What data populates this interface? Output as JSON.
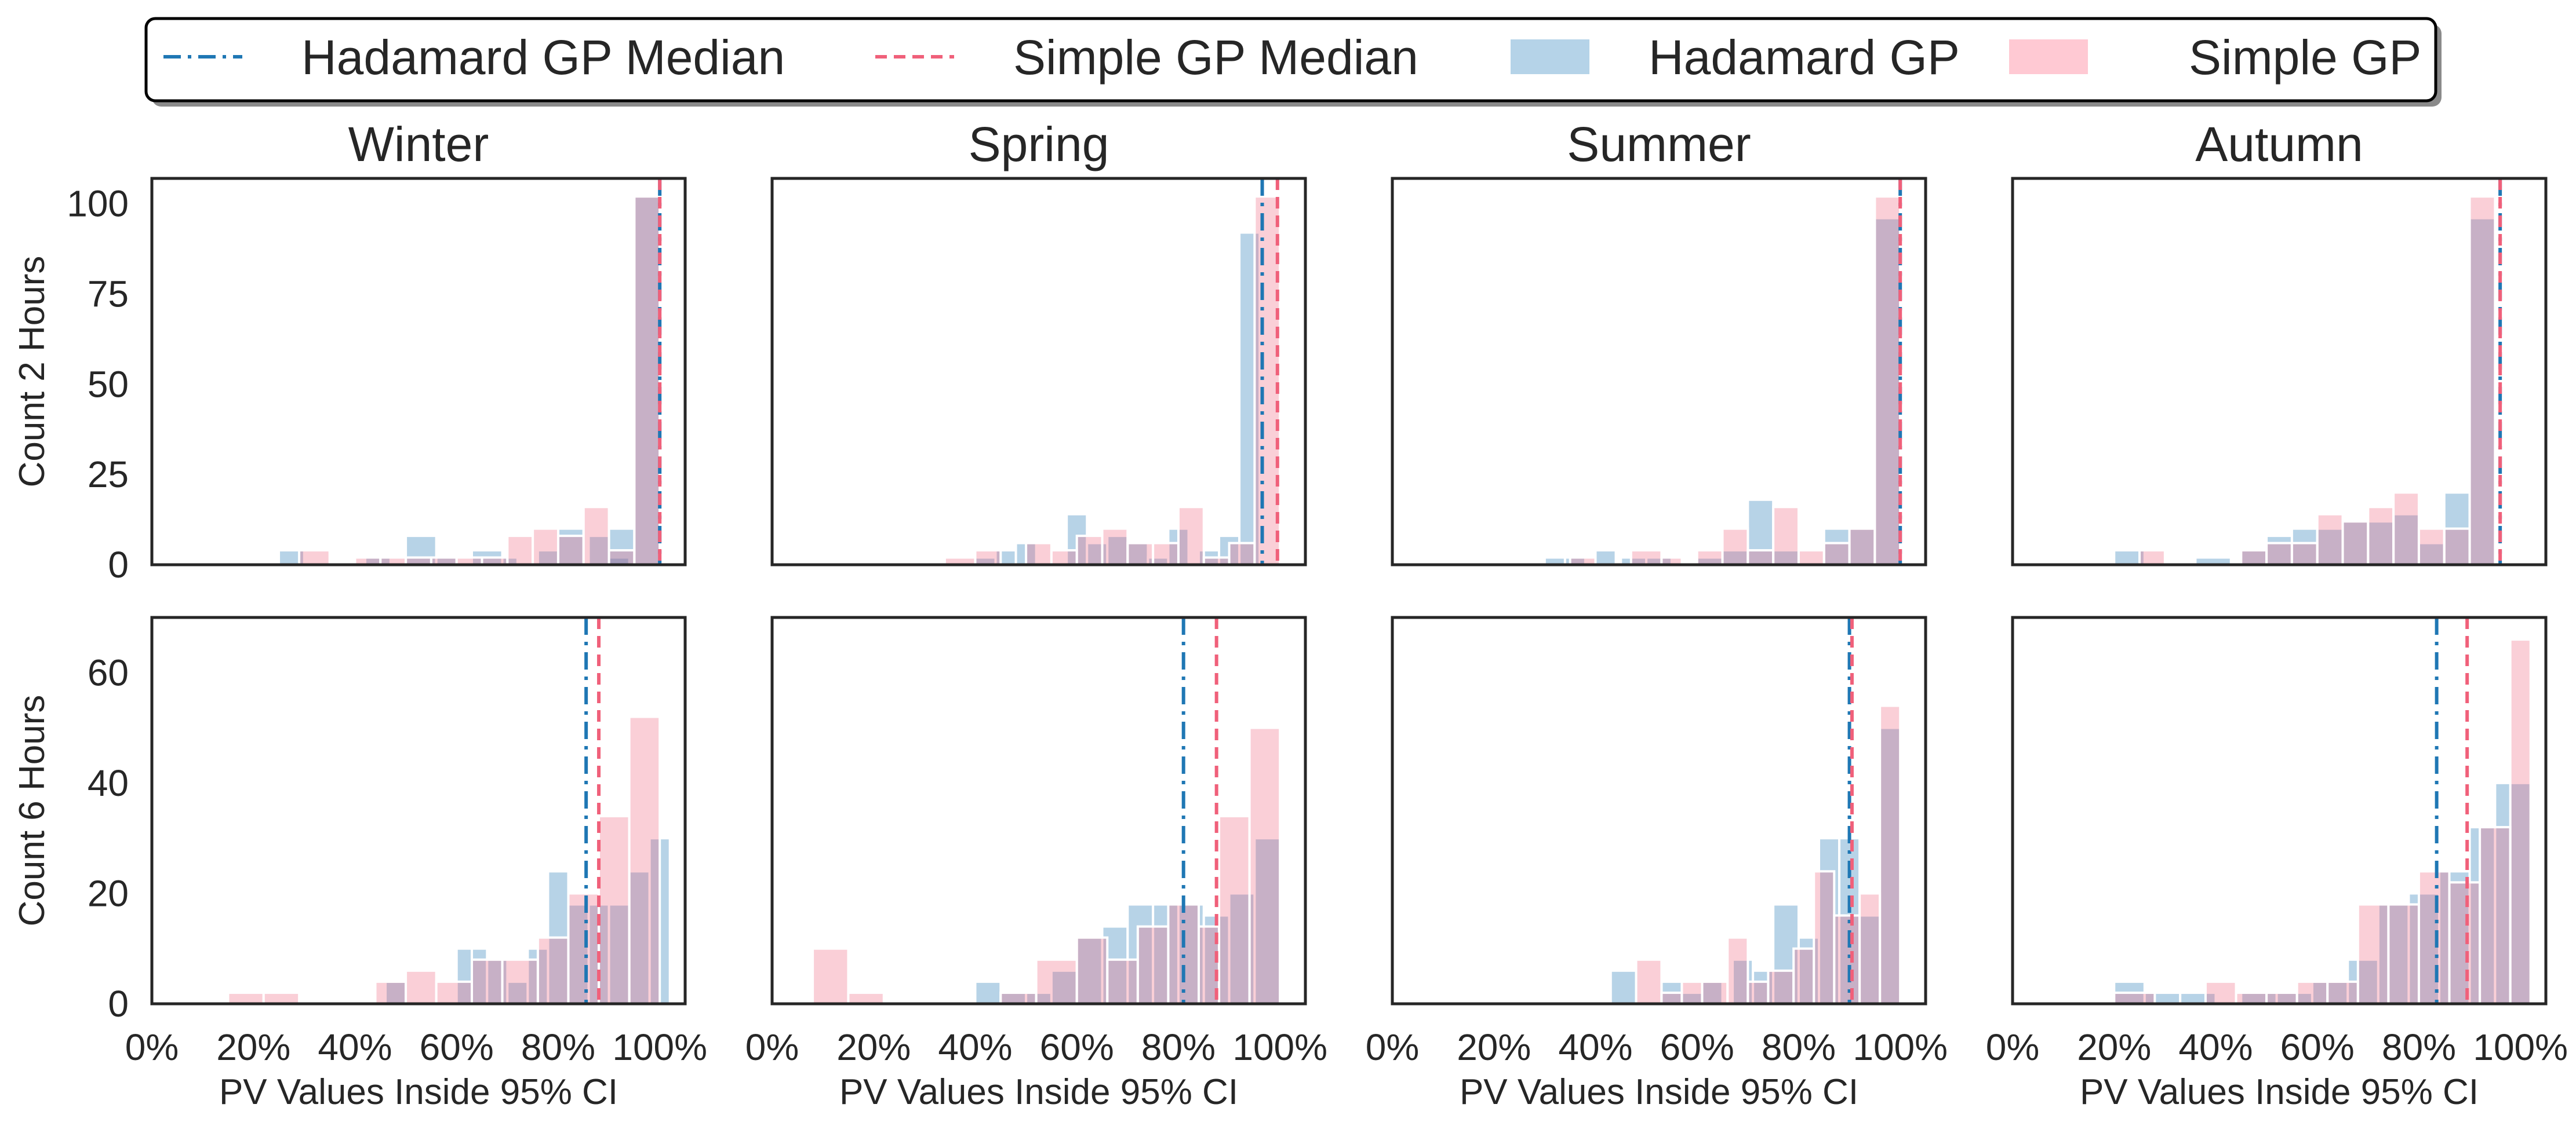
{
  "colors": {
    "hadamard": "#1f77b4",
    "simple": "#f0607a",
    "hadamard_fill": "#b5d3e8",
    "simple_fill": "#ffc9d3",
    "axes": "#262626",
    "text": "#262626"
  },
  "legend": {
    "items": [
      {
        "label": "Hadamard GP Median",
        "kind": "line",
        "series": "hadamard",
        "dash": "dashdot"
      },
      {
        "label": "Simple GP Median",
        "kind": "line",
        "series": "simple",
        "dash": "dashed"
      },
      {
        "label": "Hadamard GP",
        "kind": "patch",
        "series": "hadamard"
      },
      {
        "label": "Simple GP",
        "kind": "patch",
        "series": "simple"
      }
    ]
  },
  "chart_data": {
    "type": "histogram-grid",
    "columns": [
      "Winter",
      "Spring",
      "Summer",
      "Autumn"
    ],
    "rows": [
      {
        "ylabel": "Count 2 Hours",
        "ylim": [
          0,
          107
        ],
        "yticks": [
          0,
          25,
          50,
          75,
          100
        ]
      },
      {
        "ylabel": "Count 6 Hours",
        "ylim": [
          0,
          70
        ],
        "yticks": [
          0,
          20,
          40,
          60
        ]
      }
    ],
    "xlabel": "PV Values Inside 95% CI",
    "xlim": [
      0,
      1.05
    ],
    "xticks": [
      0,
      0.2,
      0.4,
      0.6,
      0.8,
      1.0
    ],
    "xtick_labels": [
      "0%",
      "20%",
      "40%",
      "60%",
      "80%",
      "100%"
    ],
    "panels": [
      {
        "row": 0,
        "col": 0,
        "hadamard_median": 1.0,
        "simple_median": 1.0,
        "hadamard_bins": [
          [
            0.25,
            0.3,
            4
          ],
          [
            0.42,
            0.47,
            2
          ],
          [
            0.5,
            0.56,
            8
          ],
          [
            0.56,
            0.6,
            2
          ],
          [
            0.63,
            0.69,
            4
          ],
          [
            0.69,
            0.72,
            2
          ],
          [
            0.76,
            0.8,
            4
          ],
          [
            0.8,
            0.85,
            10
          ],
          [
            0.86,
            0.9,
            8
          ],
          [
            0.9,
            0.94,
            2
          ],
          [
            0.9,
            0.95,
            10
          ],
          [
            0.95,
            1.0,
            102
          ]
        ],
        "simple_bins": [
          [
            0.29,
            0.35,
            4
          ],
          [
            0.4,
            0.45,
            2
          ],
          [
            0.45,
            0.5,
            2
          ],
          [
            0.5,
            0.55,
            2
          ],
          [
            0.55,
            0.6,
            2
          ],
          [
            0.6,
            0.65,
            2
          ],
          [
            0.65,
            0.7,
            2
          ],
          [
            0.7,
            0.75,
            8
          ],
          [
            0.75,
            0.8,
            10
          ],
          [
            0.8,
            0.85,
            8
          ],
          [
            0.85,
            0.9,
            16
          ],
          [
            0.9,
            0.95,
            4
          ],
          [
            0.95,
            1.0,
            102
          ]
        ]
      },
      {
        "row": 0,
        "col": 1,
        "hadamard_median": 0.965,
        "simple_median": 0.995,
        "hadamard_bins": [
          [
            0.4,
            0.44,
            2
          ],
          [
            0.44,
            0.48,
            4
          ],
          [
            0.48,
            0.52,
            6
          ],
          [
            0.58,
            0.62,
            14
          ],
          [
            0.62,
            0.66,
            6
          ],
          [
            0.66,
            0.7,
            8
          ],
          [
            0.7,
            0.74,
            6
          ],
          [
            0.74,
            0.78,
            2
          ],
          [
            0.78,
            0.82,
            10
          ],
          [
            0.84,
            0.88,
            4
          ],
          [
            0.88,
            0.92,
            8
          ],
          [
            0.92,
            0.96,
            92
          ]
        ],
        "simple_bins": [
          [
            0.34,
            0.4,
            2
          ],
          [
            0.4,
            0.45,
            4
          ],
          [
            0.5,
            0.55,
            6
          ],
          [
            0.55,
            0.6,
            4
          ],
          [
            0.6,
            0.65,
            8
          ],
          [
            0.65,
            0.7,
            10
          ],
          [
            0.7,
            0.75,
            6
          ],
          [
            0.75,
            0.8,
            6
          ],
          [
            0.8,
            0.85,
            16
          ],
          [
            0.85,
            0.9,
            2
          ],
          [
            0.9,
            0.95,
            6
          ],
          [
            0.95,
            1.0,
            102
          ]
        ]
      },
      {
        "row": 0,
        "col": 2,
        "hadamard_median": 1.0,
        "simple_median": 1.0,
        "hadamard_bins": [
          [
            0.3,
            0.34,
            2
          ],
          [
            0.34,
            0.38,
            2
          ],
          [
            0.4,
            0.44,
            4
          ],
          [
            0.45,
            0.5,
            2
          ],
          [
            0.5,
            0.55,
            2
          ],
          [
            0.6,
            0.65,
            2
          ],
          [
            0.65,
            0.7,
            4
          ],
          [
            0.7,
            0.75,
            18
          ],
          [
            0.75,
            0.8,
            4
          ],
          [
            0.85,
            0.9,
            10
          ],
          [
            0.9,
            0.95,
            10
          ],
          [
            0.95,
            1.0,
            96
          ]
        ],
        "simple_bins": [
          [
            0.35,
            0.4,
            2
          ],
          [
            0.47,
            0.53,
            4
          ],
          [
            0.53,
            0.57,
            2
          ],
          [
            0.6,
            0.65,
            4
          ],
          [
            0.65,
            0.7,
            10
          ],
          [
            0.7,
            0.75,
            4
          ],
          [
            0.75,
            0.8,
            16
          ],
          [
            0.8,
            0.85,
            4
          ],
          [
            0.85,
            0.9,
            6
          ],
          [
            0.9,
            0.95,
            10
          ],
          [
            0.95,
            1.0,
            102
          ]
        ]
      },
      {
        "row": 0,
        "col": 3,
        "hadamard_median": 0.96,
        "simple_median": 0.96,
        "hadamard_bins": [
          [
            0.2,
            0.26,
            4
          ],
          [
            0.36,
            0.43,
            2
          ],
          [
            0.45,
            0.5,
            4
          ],
          [
            0.5,
            0.55,
            8
          ],
          [
            0.55,
            0.6,
            10
          ],
          [
            0.6,
            0.65,
            10
          ],
          [
            0.65,
            0.7,
            12
          ],
          [
            0.7,
            0.75,
            12
          ],
          [
            0.75,
            0.8,
            14
          ],
          [
            0.8,
            0.85,
            6
          ],
          [
            0.85,
            0.9,
            20
          ],
          [
            0.9,
            0.95,
            96
          ]
        ],
        "simple_bins": [
          [
            0.25,
            0.3,
            4
          ],
          [
            0.45,
            0.5,
            4
          ],
          [
            0.5,
            0.55,
            6
          ],
          [
            0.55,
            0.6,
            6
          ],
          [
            0.6,
            0.65,
            14
          ],
          [
            0.65,
            0.7,
            12
          ],
          [
            0.7,
            0.75,
            16
          ],
          [
            0.75,
            0.8,
            20
          ],
          [
            0.8,
            0.85,
            10
          ],
          [
            0.85,
            0.9,
            10
          ],
          [
            0.9,
            0.95,
            102
          ]
        ]
      },
      {
        "row": 1,
        "col": 0,
        "hadamard_median": 0.855,
        "simple_median": 0.88,
        "hadamard_bins": [
          [
            0.46,
            0.5,
            4
          ],
          [
            0.6,
            0.63,
            10
          ],
          [
            0.63,
            0.66,
            10
          ],
          [
            0.66,
            0.7,
            8
          ],
          [
            0.7,
            0.74,
            4
          ],
          [
            0.74,
            0.78,
            10
          ],
          [
            0.78,
            0.82,
            24
          ],
          [
            0.82,
            0.86,
            18
          ],
          [
            0.86,
            0.9,
            18
          ],
          [
            0.9,
            0.94,
            18
          ],
          [
            0.94,
            0.98,
            24
          ],
          [
            0.98,
            1.02,
            30
          ]
        ],
        "simple_bins": [
          [
            0.15,
            0.22,
            2
          ],
          [
            0.22,
            0.29,
            2
          ],
          [
            0.44,
            0.5,
            4
          ],
          [
            0.5,
            0.56,
            6
          ],
          [
            0.56,
            0.63,
            4
          ],
          [
            0.63,
            0.69,
            8
          ],
          [
            0.69,
            0.76,
            8
          ],
          [
            0.76,
            0.82,
            12
          ],
          [
            0.82,
            0.88,
            20
          ],
          [
            0.88,
            0.94,
            34
          ],
          [
            0.94,
            1.0,
            52
          ]
        ]
      },
      {
        "row": 1,
        "col": 1,
        "hadamard_median": 0.81,
        "simple_median": 0.875,
        "hadamard_bins": [
          [
            0.4,
            0.45,
            4
          ],
          [
            0.45,
            0.5,
            2
          ],
          [
            0.5,
            0.55,
            2
          ],
          [
            0.55,
            0.6,
            6
          ],
          [
            0.6,
            0.65,
            12
          ],
          [
            0.65,
            0.7,
            14
          ],
          [
            0.7,
            0.75,
            18
          ],
          [
            0.75,
            0.8,
            18
          ],
          [
            0.8,
            0.85,
            18
          ],
          [
            0.85,
            0.9,
            16
          ],
          [
            0.9,
            0.95,
            20
          ],
          [
            0.95,
            1.0,
            30
          ]
        ],
        "simple_bins": [
          [
            0.08,
            0.15,
            10
          ],
          [
            0.15,
            0.22,
            2
          ],
          [
            0.45,
            0.52,
            2
          ],
          [
            0.52,
            0.6,
            8
          ],
          [
            0.6,
            0.66,
            12
          ],
          [
            0.66,
            0.72,
            8
          ],
          [
            0.72,
            0.78,
            14
          ],
          [
            0.78,
            0.84,
            18
          ],
          [
            0.84,
            0.88,
            14
          ],
          [
            0.88,
            0.94,
            34
          ],
          [
            0.94,
            1.0,
            50
          ]
        ]
      },
      {
        "row": 1,
        "col": 2,
        "hadamard_median": 0.9,
        "simple_median": 0.905,
        "hadamard_bins": [
          [
            0.43,
            0.48,
            6
          ],
          [
            0.53,
            0.57,
            4
          ],
          [
            0.57,
            0.61,
            2
          ],
          [
            0.61,
            0.65,
            4
          ],
          [
            0.67,
            0.71,
            8
          ],
          [
            0.71,
            0.75,
            6
          ],
          [
            0.75,
            0.8,
            18
          ],
          [
            0.8,
            0.84,
            12
          ],
          [
            0.84,
            0.88,
            30
          ],
          [
            0.88,
            0.92,
            30
          ],
          [
            0.92,
            0.96,
            16
          ],
          [
            0.96,
            1.0,
            50
          ]
        ],
        "simple_bins": [
          [
            0.48,
            0.53,
            8
          ],
          [
            0.53,
            0.57,
            2
          ],
          [
            0.57,
            0.61,
            4
          ],
          [
            0.61,
            0.66,
            4
          ],
          [
            0.66,
            0.7,
            12
          ],
          [
            0.7,
            0.74,
            4
          ],
          [
            0.74,
            0.79,
            6
          ],
          [
            0.79,
            0.83,
            10
          ],
          [
            0.83,
            0.87,
            24
          ],
          [
            0.87,
            0.92,
            16
          ],
          [
            0.92,
            0.96,
            20
          ],
          [
            0.96,
            1.0,
            54
          ]
        ]
      },
      {
        "row": 1,
        "col": 3,
        "hadamard_median": 0.835,
        "simple_median": 0.895,
        "hadamard_bins": [
          [
            0.2,
            0.26,
            4
          ],
          [
            0.26,
            0.33,
            2
          ],
          [
            0.33,
            0.4,
            2
          ],
          [
            0.45,
            0.52,
            2
          ],
          [
            0.52,
            0.59,
            2
          ],
          [
            0.59,
            0.66,
            4
          ],
          [
            0.66,
            0.72,
            8
          ],
          [
            0.72,
            0.78,
            18
          ],
          [
            0.78,
            0.84,
            20
          ],
          [
            0.84,
            0.9,
            24
          ],
          [
            0.9,
            0.95,
            32
          ],
          [
            0.95,
            1.02,
            40
          ]
        ],
        "simple_bins": [
          [
            0.2,
            0.28,
            2
          ],
          [
            0.38,
            0.44,
            4
          ],
          [
            0.44,
            0.5,
            2
          ],
          [
            0.5,
            0.56,
            2
          ],
          [
            0.56,
            0.62,
            4
          ],
          [
            0.62,
            0.68,
            4
          ],
          [
            0.68,
            0.74,
            18
          ],
          [
            0.74,
            0.8,
            18
          ],
          [
            0.8,
            0.86,
            24
          ],
          [
            0.86,
            0.92,
            22
          ],
          [
            0.92,
            0.98,
            32
          ],
          [
            0.98,
            1.02,
            66
          ]
        ]
      }
    ]
  }
}
